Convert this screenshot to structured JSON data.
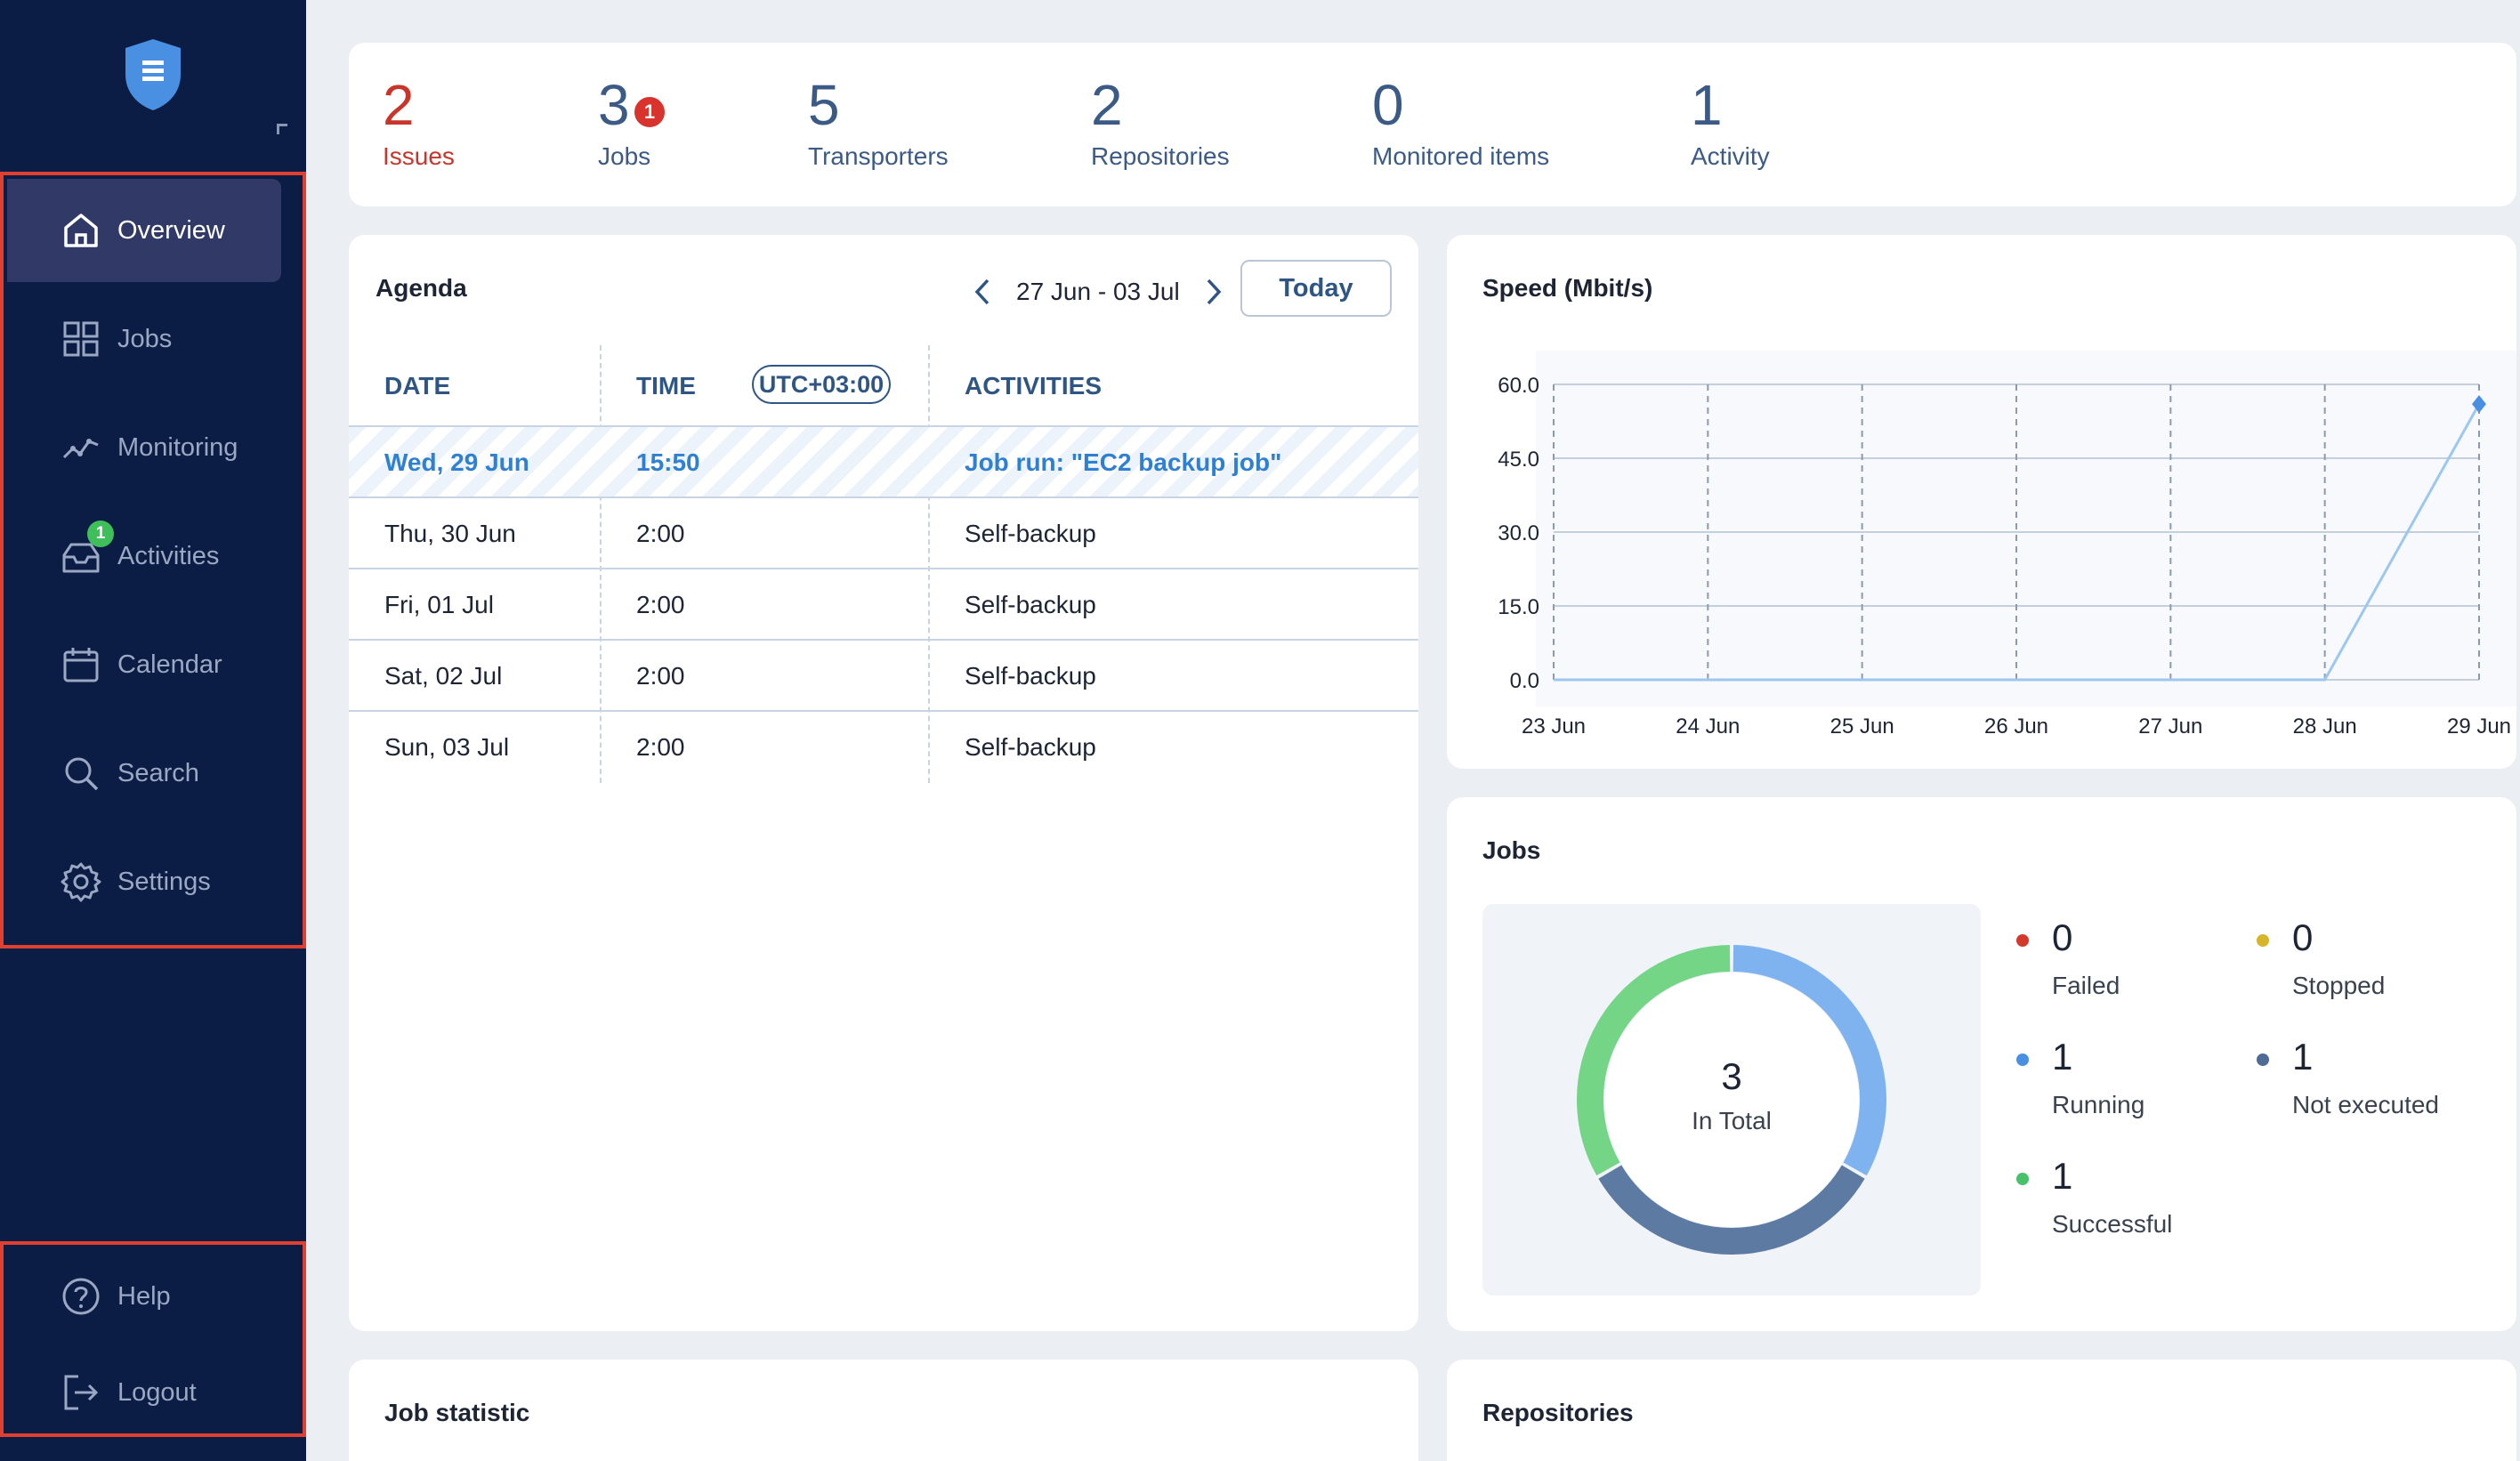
{
  "sidebar": {
    "items": [
      {
        "label": "Overview",
        "icon": "home-icon",
        "active": true
      },
      {
        "label": "Jobs",
        "icon": "grid-icon"
      },
      {
        "label": "Monitoring",
        "icon": "chart-line-icon"
      },
      {
        "label": "Activities",
        "icon": "inbox-icon",
        "badge": "1"
      },
      {
        "label": "Calendar",
        "icon": "calendar-icon"
      },
      {
        "label": "Search",
        "icon": "search-icon"
      },
      {
        "label": "Settings",
        "icon": "gear-icon"
      }
    ],
    "bottom": [
      {
        "label": "Help",
        "icon": "help-icon"
      },
      {
        "label": "Logout",
        "icon": "logout-icon"
      }
    ]
  },
  "summary": {
    "issues": {
      "value": "2",
      "label": "Issues"
    },
    "jobs": {
      "value": "3",
      "label": "Jobs",
      "badge": "1"
    },
    "transporters": {
      "value": "5",
      "label": "Transporters"
    },
    "repositories": {
      "value": "2",
      "label": "Repositories"
    },
    "monitored": {
      "value": "0",
      "label": "Monitored items"
    },
    "activity": {
      "value": "1",
      "label": "Activity"
    }
  },
  "agenda": {
    "title": "Agenda",
    "range": "27 Jun - 03 Jul",
    "today_label": "Today",
    "columns": {
      "date": "DATE",
      "time": "TIME",
      "timezone": "UTC+03:00",
      "activities": "ACTIVITIES"
    },
    "rows": [
      {
        "date": "Wed, 29 Jun",
        "time": "15:50",
        "activity": "Job run: \"EC2 backup job\""
      },
      {
        "date": "Thu, 30 Jun",
        "time": "2:00",
        "activity": "Self-backup"
      },
      {
        "date": "Fri, 01 Jul",
        "time": "2:00",
        "activity": "Self-backup"
      },
      {
        "date": "Sat, 02 Jul",
        "time": "2:00",
        "activity": "Self-backup"
      },
      {
        "date": "Sun, 03 Jul",
        "time": "2:00",
        "activity": "Self-backup"
      }
    ]
  },
  "speed": {
    "title": "Speed (Mbit/s)"
  },
  "chart_data": {
    "type": "line",
    "title": "Speed (Mbit/s)",
    "x": [
      "23 Jun",
      "24 Jun",
      "25 Jun",
      "26 Jun",
      "27 Jun",
      "28 Jun",
      "29 Jun"
    ],
    "y_ticks": [
      "60.0",
      "45.0",
      "30.0",
      "15.0",
      "0.0"
    ],
    "ylim": [
      0,
      60
    ],
    "series": [
      {
        "values": [
          0,
          0,
          0,
          0,
          0,
          0,
          56
        ]
      }
    ],
    "grid": true,
    "colors": {
      "line": "#9ec7f0",
      "point": "#4a90e2",
      "grid": "#c3cfdd"
    }
  },
  "jobs_panel": {
    "title": "Jobs",
    "total": "3",
    "total_label": "In Total",
    "legend": [
      {
        "value": "0",
        "label": "Failed",
        "color": "#d33a2c"
      },
      {
        "value": "0",
        "label": "Stopped",
        "color": "#d6b52b"
      },
      {
        "value": "1",
        "label": "Running",
        "color": "#4a90e2"
      },
      {
        "value": "1",
        "label": "Not executed",
        "color": "#4e6b95"
      },
      {
        "value": "1",
        "label": "Successful",
        "color": "#47c268"
      }
    ]
  },
  "bottom_cards": {
    "job_statistic": "Job statistic",
    "repositories": "Repositories"
  }
}
